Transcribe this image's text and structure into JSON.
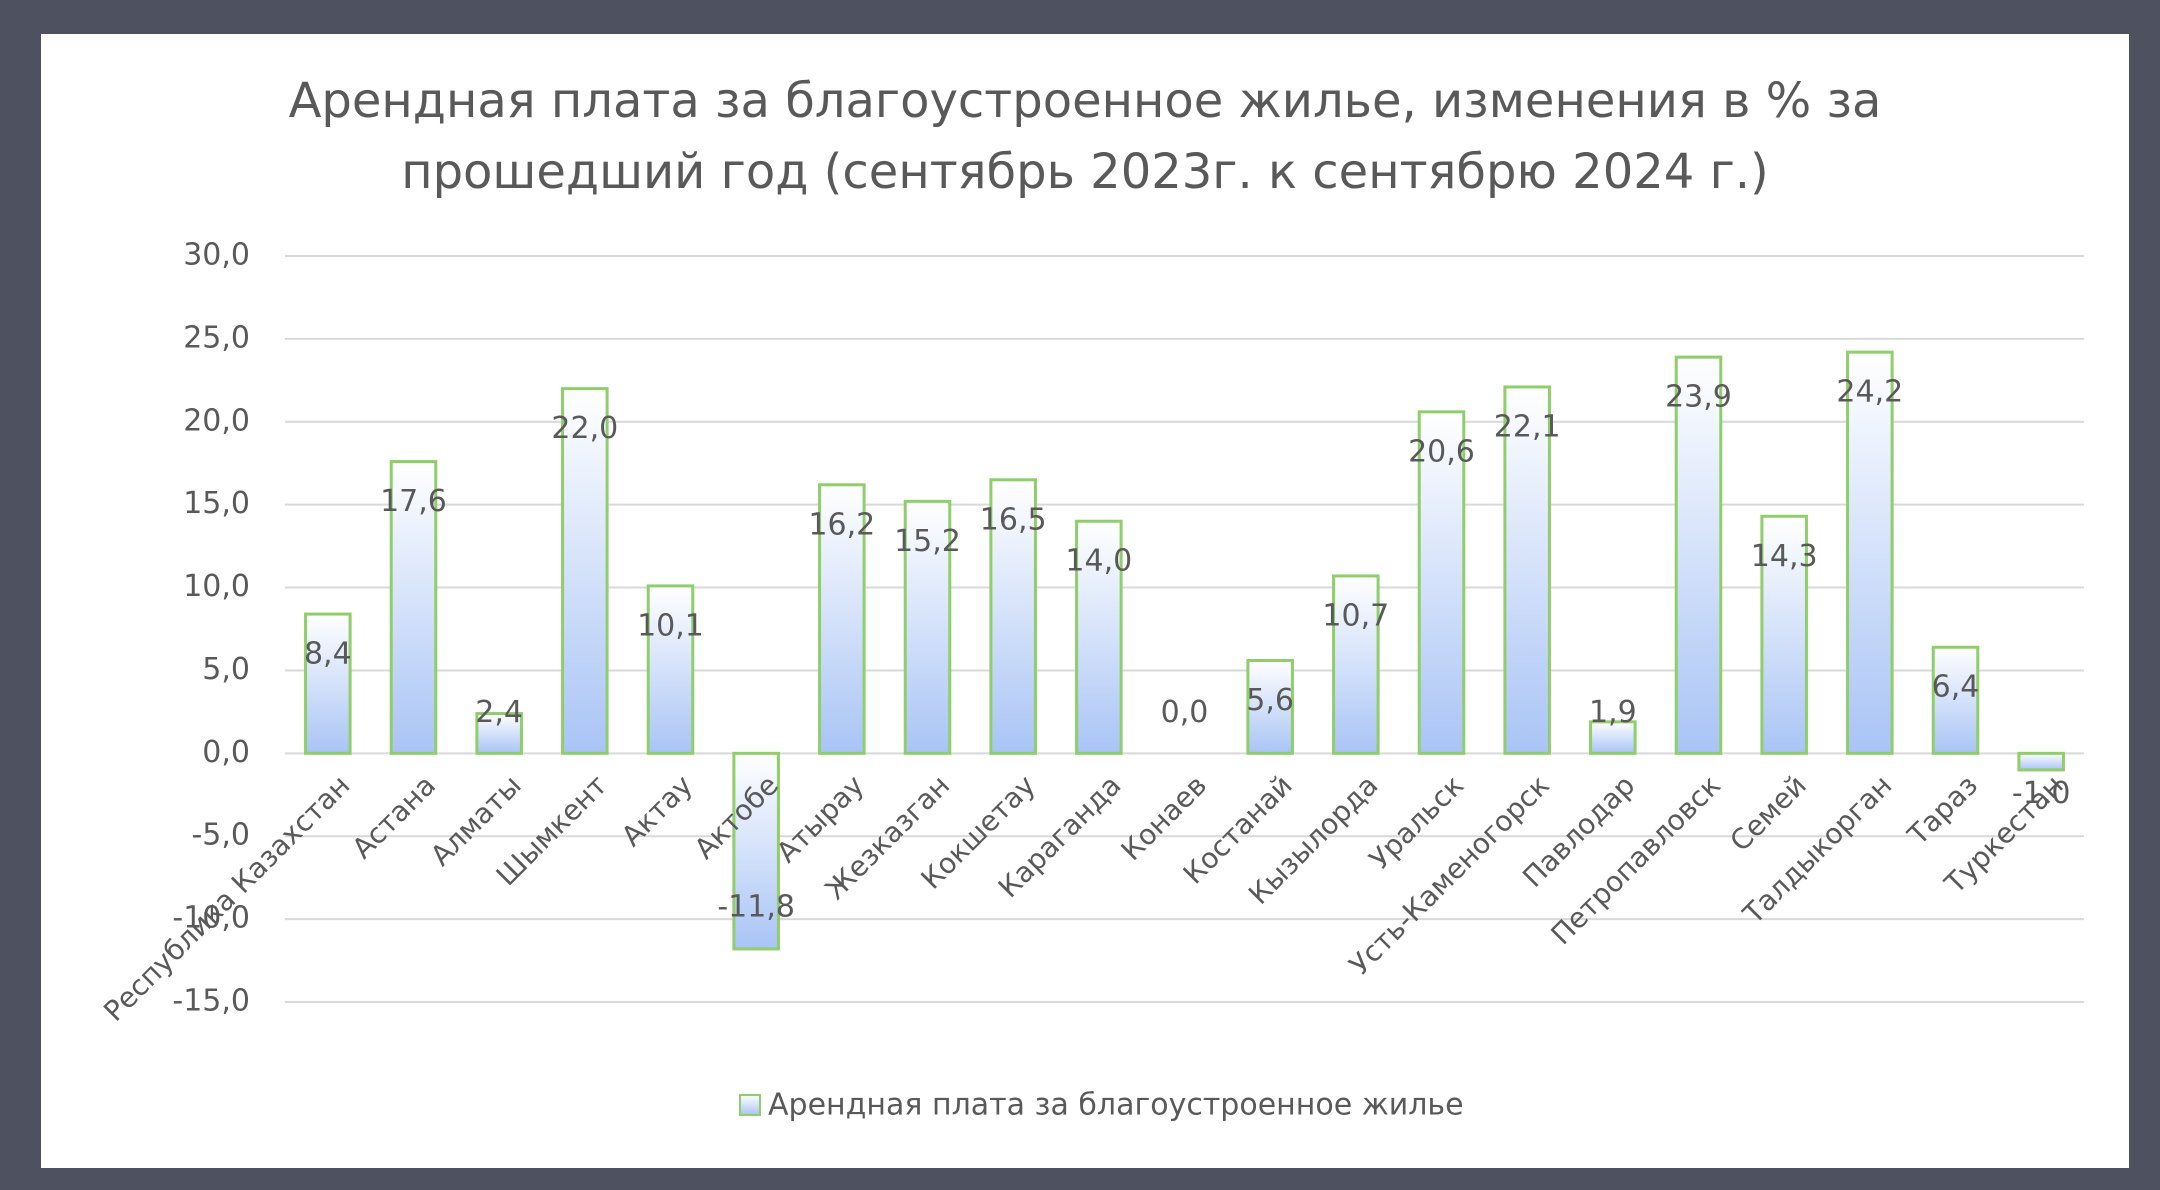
{
  "chart_data": {
    "type": "bar",
    "title": [
      "Арендная плата за благоустроенное жилье, изменения в % за",
      "прошедший год (сентябрь 2023г. к сентябрю 2024 г.)"
    ],
    "categories": [
      "Республика Казахстан",
      "Астана",
      "Алматы",
      "Шымкент",
      "Актау",
      "Актобе",
      "Атырау",
      "Жезказган",
      "Кокшетау",
      "Караганда",
      "Конаев",
      "Костанай",
      "Кызылорда",
      "Уральск",
      "Усть-Каменогорск",
      "Павлодар",
      "Петропавловск",
      "Семей",
      "Талдыкорган",
      "Тараз",
      "Туркестан"
    ],
    "series": [
      {
        "name": "Арендная плата за благоустроенное жилье",
        "color": "#a9c4f5",
        "values": [
          8.4,
          17.6,
          2.4,
          22.0,
          10.1,
          -11.8,
          16.2,
          15.2,
          16.5,
          14.0,
          0.0,
          5.6,
          10.7,
          20.6,
          22.1,
          1.9,
          23.9,
          14.3,
          24.2,
          6.4,
          -1.0
        ],
        "value_labels": [
          "8,4",
          "17,6",
          "2,4",
          "22,0",
          "10,1",
          "-11,8",
          "16,2",
          "15,2",
          "16,5",
          "14,0",
          "0,0",
          "5,6",
          "10,7",
          "20,6",
          "22,1",
          "1,9",
          "23,9",
          "14,3",
          "24,2",
          "6,4",
          "-1,0"
        ]
      }
    ],
    "ylim": [
      -15,
      30
    ],
    "yticks": [
      {
        "value": -15,
        "label": "-15,0"
      },
      {
        "value": -10,
        "label": "-10,0"
      },
      {
        "value": -5,
        "label": "-5,0"
      },
      {
        "value": 0,
        "label": "0,0"
      },
      {
        "value": 5,
        "label": "5,0"
      },
      {
        "value": 10,
        "label": "10,0"
      },
      {
        "value": 15,
        "label": "15,0"
      },
      {
        "value": 20,
        "label": "20,0"
      },
      {
        "value": 25,
        "label": "25,0"
      },
      {
        "value": 30,
        "label": "30,0"
      }
    ],
    "grid": true,
    "legend": "bottom"
  }
}
